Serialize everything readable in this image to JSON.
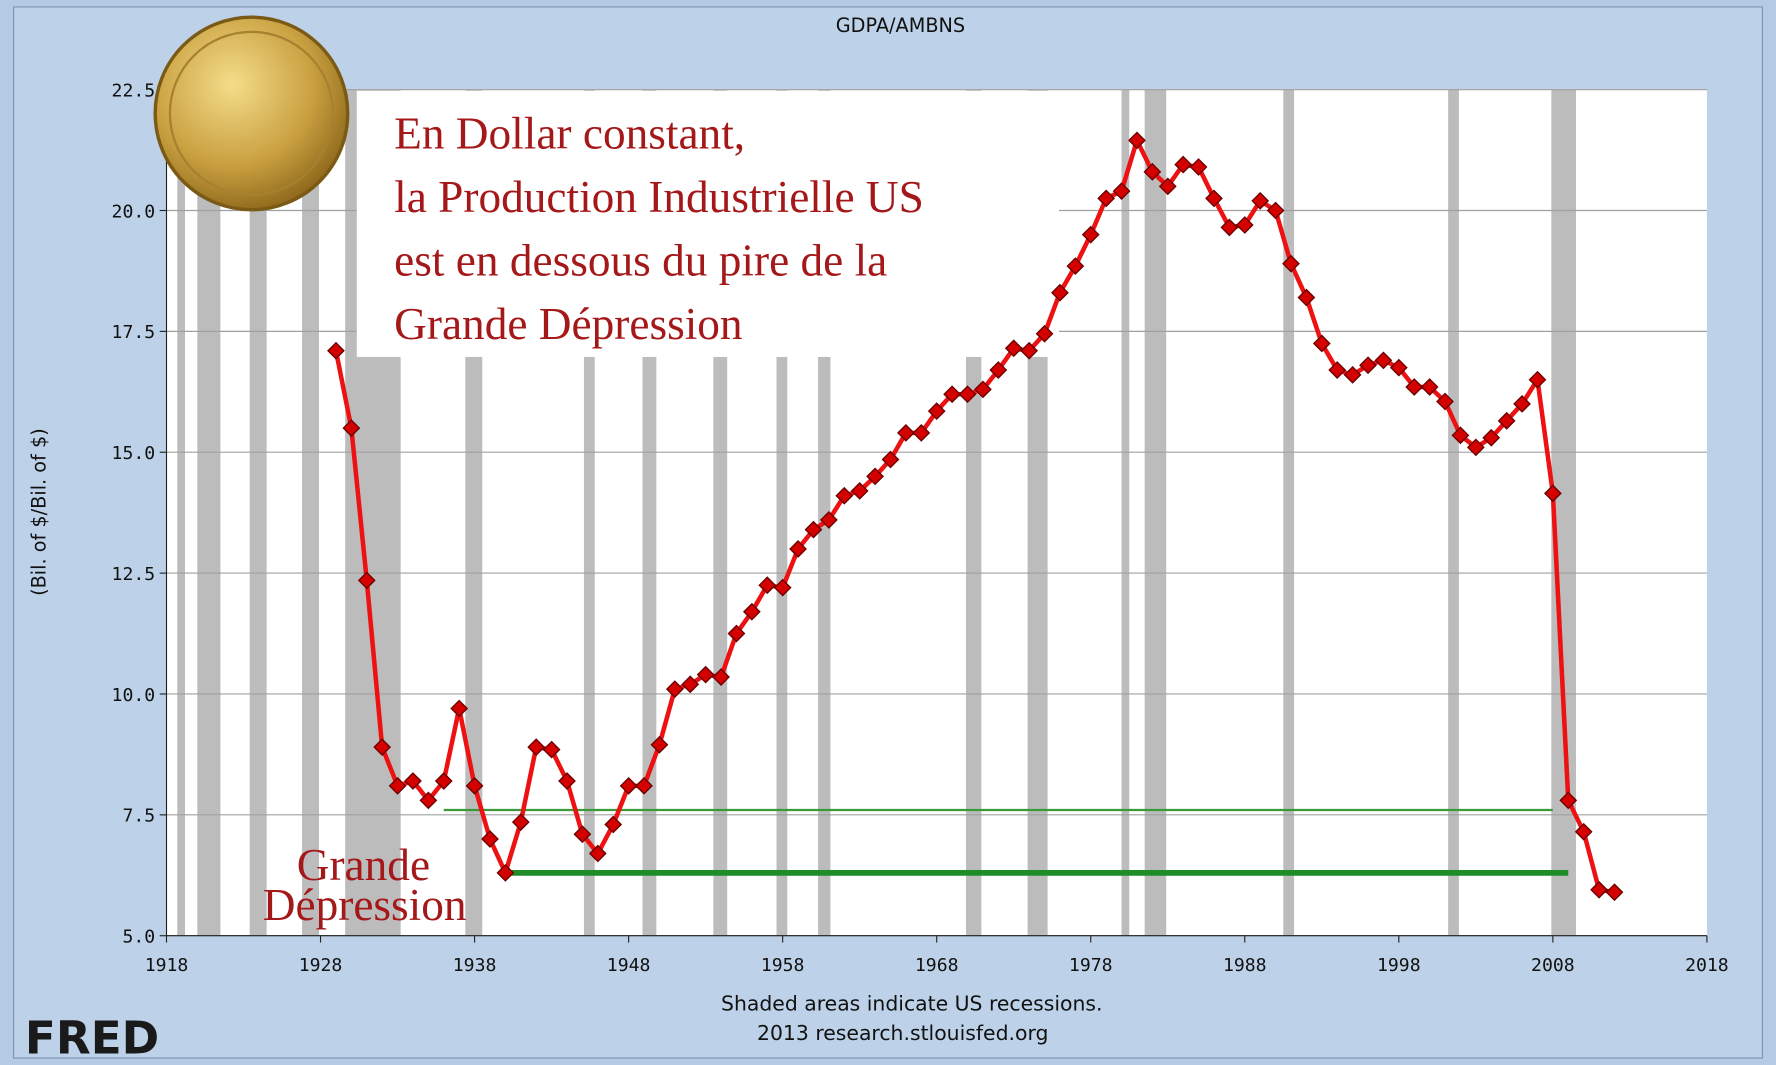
{
  "chart_data": {
    "type": "line",
    "title": "GDPA/AMBNS",
    "y_label": "(Bil. of $/Bil. of $)",
    "footer": [
      "Shaded areas indicate US recessions.",
      "2013 research.stlouisfed.org"
    ],
    "logo": "FRED",
    "annotation": [
      "En Dollar constant,",
      "la Production Industrielle US",
      "est en dessous du pire de la",
      "Grande Dépression"
    ],
    "annotation_2": [
      "Grande",
      "Dépression"
    ],
    "xlim": [
      1918,
      2018
    ],
    "xticks": [
      1918,
      1928,
      1938,
      1948,
      1958,
      1968,
      1978,
      1988,
      1998,
      2008,
      2018
    ],
    "ylim": [
      5,
      22.5
    ],
    "yticks": [
      {
        "value": 5,
        "label": "5.0"
      },
      7.5,
      {
        "value": 10,
        "label": "10.0"
      },
      12.5,
      {
        "value": 15,
        "label": "15.0"
      },
      17.5,
      {
        "value": 20,
        "label": "20.0"
      },
      22.5
    ],
    "grid": true,
    "recessions": [
      [
        1918.7,
        1919.2
      ],
      [
        1920,
        1921.5
      ],
      [
        1923.4,
        1924.5
      ],
      [
        1926.8,
        1927.9
      ],
      [
        1929.6,
        1933.2
      ],
      [
        1937.4,
        1938.5
      ],
      [
        1945.1,
        1945.8
      ],
      [
        1948.9,
        1949.8
      ],
      [
        1953.5,
        1954.4
      ],
      [
        1957.6,
        1958.3
      ],
      [
        1960.3,
        1961.1
      ],
      [
        1969.9,
        1970.9
      ],
      [
        1973.9,
        1975.2
      ],
      [
        1980,
        1980.5
      ],
      [
        1981.5,
        1982.9
      ],
      [
        1990.5,
        1991.2
      ],
      [
        2001.2,
        2001.9
      ],
      [
        2007.9,
        2009.5
      ]
    ],
    "reference_lines": [
      {
        "y": 7.6,
        "x": [
          1936,
          2008
        ],
        "color": "#3a9a3a",
        "width": 2
      },
      {
        "y": 6.3,
        "x": [
          1940.4,
          2009
        ],
        "color": "#1f8c2a",
        "width": 5
      }
    ],
    "series": [
      {
        "name": "GDPA/AMBNS",
        "color": "#ee1111",
        "x": [
          1929,
          1930,
          1931,
          1932,
          1933,
          1934,
          1935,
          1936,
          1937,
          1938,
          1939,
          1940,
          1941,
          1942,
          1943,
          1944,
          1945,
          1946,
          1947,
          1948,
          1949,
          1950,
          1951,
          1952,
          1953,
          1954,
          1955,
          1956,
          1957,
          1958,
          1959,
          1960,
          1961,
          1962,
          1963,
          1964,
          1965,
          1966,
          1967,
          1968,
          1969,
          1970,
          1971,
          1972,
          1973,
          1974,
          1975,
          1976,
          1977,
          1978,
          1979,
          1980,
          1981,
          1982,
          1983,
          1984,
          1985,
          1986,
          1987,
          1988,
          1989,
          1990,
          1991,
          1992,
          1993,
          1994,
          1995,
          1996,
          1997,
          1998,
          1999,
          2000,
          2001,
          2002,
          2003,
          2004,
          2005,
          2006,
          2007,
          2008,
          2009,
          2010,
          2011,
          2012
        ],
        "values": [
          17.1,
          15.5,
          12.35,
          8.9,
          8.1,
          8.2,
          7.8,
          8.2,
          9.7,
          8.1,
          7.0,
          6.3,
          7.35,
          8.9,
          8.85,
          8.2,
          7.1,
          6.7,
          7.3,
          8.1,
          8.1,
          8.95,
          10.1,
          10.2,
          10.4,
          10.35,
          11.25,
          11.7,
          12.25,
          12.2,
          13.0,
          13.4,
          13.6,
          14.1,
          14.2,
          14.5,
          14.85,
          15.4,
          15.4,
          15.85,
          16.2,
          16.2,
          16.3,
          16.7,
          17.15,
          17.1,
          17.45,
          18.3,
          18.85,
          19.5,
          20.25,
          20.4,
          21.45,
          20.8,
          20.5,
          20.95,
          20.9,
          20.25,
          19.65,
          19.7,
          20.2,
          20.0,
          18.9,
          18.2,
          17.25,
          16.7,
          16.6,
          16.8,
          16.9,
          16.75,
          16.35,
          16.35,
          16.05,
          15.35,
          15.1,
          15.3,
          15.65,
          16.0,
          16.5,
          14.15,
          7.8,
          7.15,
          5.95,
          5.9
        ]
      }
    ]
  }
}
